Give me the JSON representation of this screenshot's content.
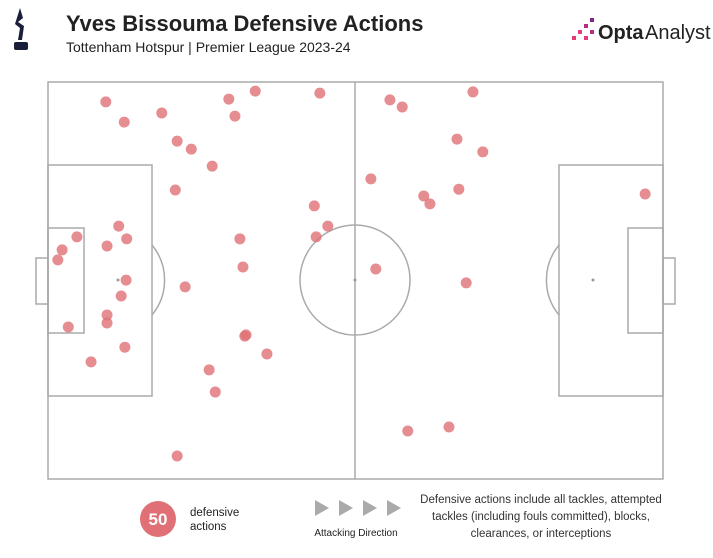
{
  "brand": {
    "name": "Opta",
    "product": "Analyst"
  },
  "chart_data": {
    "type": "scatter",
    "title": "Yves Bissouma Defensive Actions",
    "subtitle": "Tottenham Hotspur | Premier League 2023-24",
    "color": "#e07075",
    "xlim": [
      0,
      100
    ],
    "ylim": [
      0,
      100
    ],
    "x": [
      9.4,
      12.4,
      18.5,
      29.4,
      33.7,
      30.4,
      44.2,
      21.0,
      23.3,
      26.7,
      20.7,
      11.5,
      4.7,
      2.3,
      1.6,
      9.6,
      12.8,
      12.7,
      11.9,
      9.6,
      9.6,
      3.3,
      12.5,
      7.0,
      22.3,
      31.2,
      31.7,
      32.2,
      32.0,
      35.6,
      26.2,
      27.2,
      21.0,
      43.3,
      45.5,
      43.6,
      55.6,
      57.6,
      69.1,
      66.5,
      70.7,
      52.5,
      61.1,
      62.1,
      66.8,
      53.3,
      68.0,
      97.1,
      58.5,
      65.2
    ],
    "y": [
      95.0,
      89.9,
      92.2,
      95.7,
      97.7,
      91.4,
      97.2,
      85.1,
      83.1,
      78.8,
      72.8,
      63.7,
      61.0,
      57.7,
      55.2,
      58.7,
      60.5,
      50.1,
      46.1,
      41.3,
      39.3,
      38.3,
      33.2,
      29.5,
      48.4,
      60.5,
      53.4,
      36.3,
      36.0,
      31.5,
      27.5,
      21.9,
      5.8,
      68.8,
      63.7,
      61.0,
      95.5,
      93.7,
      97.5,
      85.6,
      82.4,
      75.6,
      71.3,
      69.3,
      73.0,
      52.9,
      49.4,
      71.8,
      12.1,
      13.1
    ],
    "total": 50,
    "total_label": [
      "defensive",
      "actions"
    ],
    "direction_label": "Attacking Direction",
    "note": "Defensive actions include all tackles, attempted tackles (including fouls committed), blocks, clearances, or interceptions"
  }
}
